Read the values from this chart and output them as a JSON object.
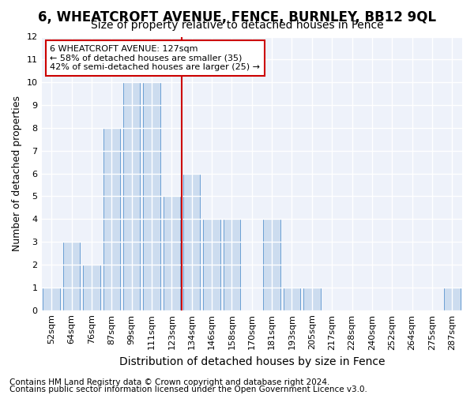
{
  "title": "6, WHEATCROFT AVENUE, FENCE, BURNLEY, BB12 9QL",
  "subtitle": "Size of property relative to detached houses in Fence",
  "xlabel": "Distribution of detached houses by size in Fence",
  "ylabel": "Number of detached properties",
  "categories": [
    "52sqm",
    "64sqm",
    "76sqm",
    "87sqm",
    "99sqm",
    "111sqm",
    "123sqm",
    "134sqm",
    "146sqm",
    "158sqm",
    "170sqm",
    "181sqm",
    "193sqm",
    "205sqm",
    "217sqm",
    "228sqm",
    "240sqm",
    "252sqm",
    "264sqm",
    "275sqm",
    "287sqm"
  ],
  "values": [
    1,
    3,
    2,
    8,
    10,
    10,
    5,
    6,
    4,
    4,
    0,
    4,
    1,
    1,
    0,
    0,
    0,
    0,
    0,
    0,
    1
  ],
  "bar_color": "#ccdcef",
  "bar_edge_color": "#6b9fd4",
  "highlight_index": 6,
  "highlight_line_color": "#cc0000",
  "annotation_text": "6 WHEATCROFT AVENUE: 127sqm\n← 58% of detached houses are smaller (35)\n42% of semi-detached houses are larger (25) →",
  "annotation_box_color": "#ffffff",
  "annotation_box_edge_color": "#cc0000",
  "footer_line1": "Contains HM Land Registry data © Crown copyright and database right 2024.",
  "footer_line2": "Contains public sector information licensed under the Open Government Licence v3.0.",
  "ylim": [
    0,
    12
  ],
  "yticks": [
    0,
    1,
    2,
    3,
    4,
    5,
    6,
    7,
    8,
    9,
    10,
    11,
    12
  ],
  "background_color": "#ffffff",
  "plot_background_color": "#eef2fa",
  "grid_color": "#ffffff",
  "title_fontsize": 12,
  "subtitle_fontsize": 10,
  "xlabel_fontsize": 10,
  "ylabel_fontsize": 9,
  "tick_fontsize": 8,
  "footer_fontsize": 7.5
}
